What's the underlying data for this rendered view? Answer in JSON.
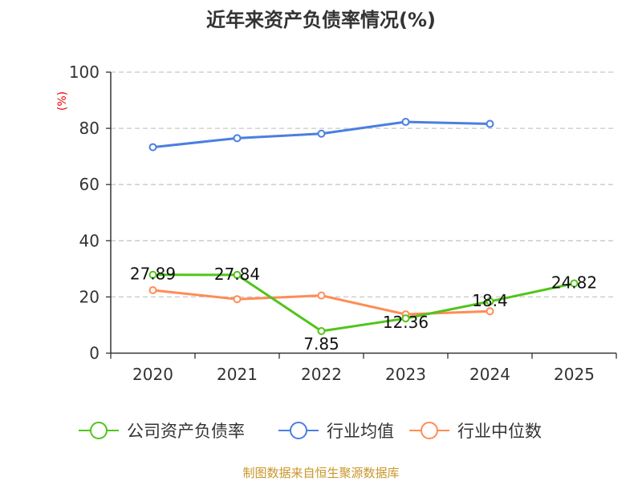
{
  "chart_data": {
    "type": "line",
    "title": "近年来资产负债率情况(%)",
    "ylabel": "(%)",
    "xlabel": "",
    "ylim": [
      0,
      100
    ],
    "yticks": [
      0,
      20,
      40,
      60,
      80,
      100
    ],
    "grid": true,
    "legend_position": "bottom",
    "categories": [
      "2020",
      "2021",
      "2022",
      "2023",
      "2024",
      "2025"
    ],
    "series": [
      {
        "name": "公司资产负债率",
        "color": "#52c41a",
        "values": [
          27.89,
          27.84,
          7.85,
          12.36,
          18.4,
          24.82
        ],
        "labels": [
          "27.89",
          "27.84",
          "7.85",
          "12.36",
          "18.4",
          "24.82"
        ]
      },
      {
        "name": "行业均值",
        "color": "#4a7fe0",
        "values": [
          73.3,
          76.5,
          78.1,
          82.3,
          81.6,
          null
        ]
      },
      {
        "name": "行业中位数",
        "color": "#ff8c55",
        "values": [
          22.4,
          19.2,
          20.5,
          13.8,
          14.9,
          null
        ]
      }
    ],
    "source": "制图数据来自恒生聚源数据库"
  }
}
